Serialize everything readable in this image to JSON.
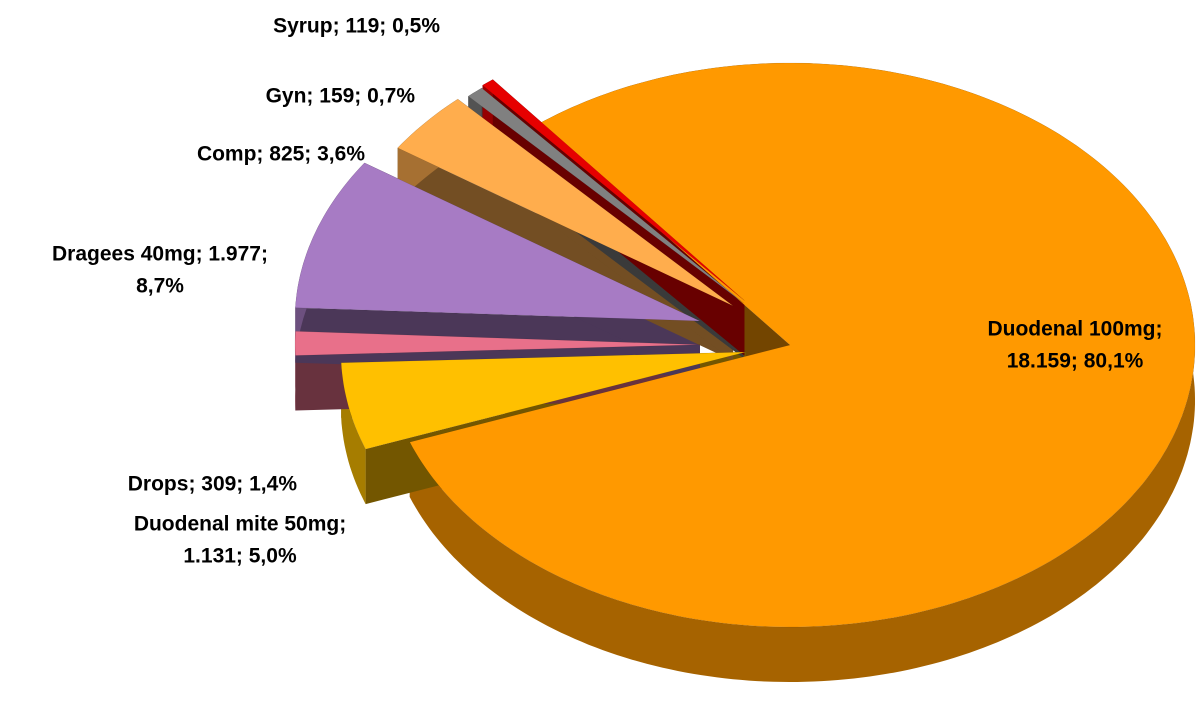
{
  "chart_data": {
    "type": "pie",
    "values": [
      18159,
      1131,
      309,
      1977,
      825,
      159,
      119
    ],
    "value_labels": [
      [
        "Duodenal 100mg;",
        "18.159; 80,1%"
      ],
      [
        "Duodenal mite 50mg;",
        "1.131; 5,0%"
      ],
      [
        "Drops; 309; 1,4%"
      ],
      [
        "Dragees 40mg; 1.977;",
        "8,7%"
      ],
      [
        "Comp; 825; 3,6%"
      ],
      [
        "Gyn; 159; 0,7%"
      ],
      [
        "Syrup; 119; 0,5%"
      ]
    ],
    "colors": [
      "#ff9900",
      "#ffc000",
      "#e8708a",
      "#a77bc4",
      "#ffad4d",
      "#808080",
      "#e60000"
    ],
    "three_d": true
  }
}
